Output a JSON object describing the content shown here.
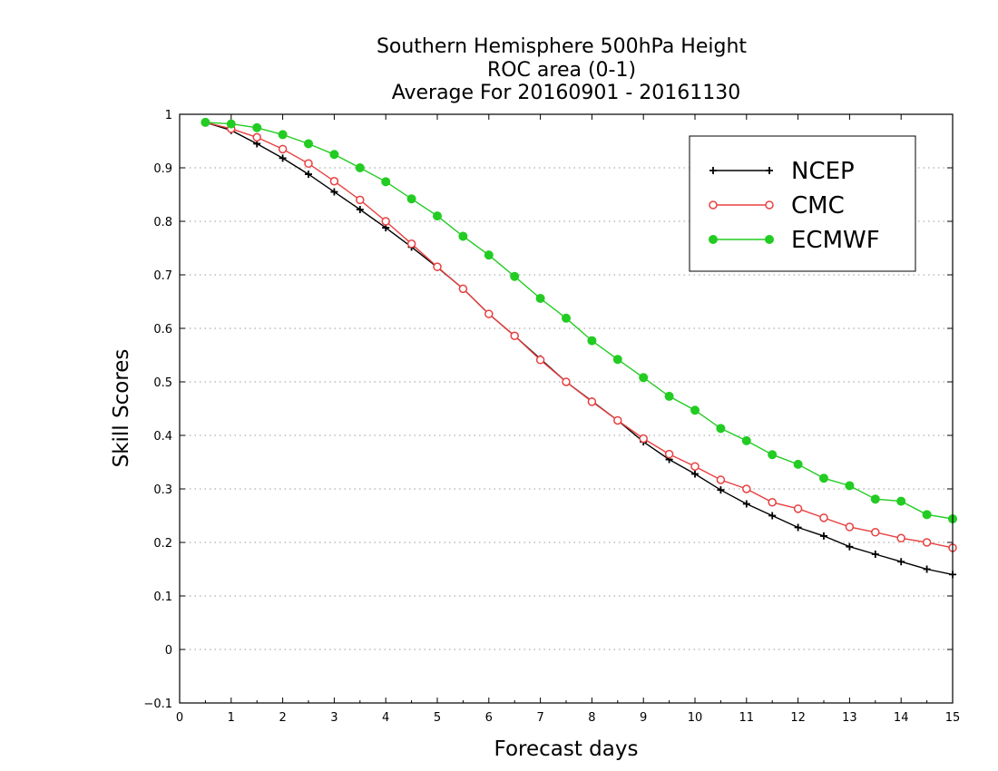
{
  "chart_data": {
    "type": "line",
    "title": [
      "Southern Hemisphere 500hPa Height",
      "ROC area (0-1)",
      "Average For 20160901 - 20161130"
    ],
    "xlabel": "Forecast days",
    "ylabel": "Skill Scores",
    "xlim": [
      0,
      15
    ],
    "ylim": [
      -0.1,
      1
    ],
    "x_ticks": [
      "0",
      "1",
      "2",
      "3",
      "4",
      "5",
      "6",
      "7",
      "8",
      "9",
      "10",
      "11",
      "12",
      "13",
      "14",
      "15"
    ],
    "y_ticks": [
      "−0.1",
      "0",
      "0.1",
      "0.2",
      "0.3",
      "0.4",
      "0.5",
      "0.6",
      "0.7",
      "0.8",
      "0.9",
      "1"
    ],
    "grid": "horizontal dotted",
    "legend_position": "top-right",
    "x": [
      0.5,
      1,
      1.5,
      2,
      2.5,
      3,
      3.5,
      4,
      4.5,
      5,
      5.5,
      6,
      6.5,
      7,
      7.5,
      8,
      8.5,
      9,
      9.5,
      10,
      10.5,
      11,
      11.5,
      12,
      12.5,
      13,
      13.5,
      14,
      14.5,
      15
    ],
    "series": [
      {
        "name": "NCEP",
        "color": "#000000",
        "marker": "plus",
        "values": [
          0.985,
          0.97,
          0.945,
          0.918,
          0.888,
          0.855,
          0.822,
          0.788,
          0.752,
          0.714,
          0.674,
          0.627,
          0.586,
          0.543,
          0.5,
          0.464,
          0.428,
          0.388,
          0.355,
          0.328,
          0.298,
          0.272,
          0.25,
          0.228,
          0.212,
          0.192,
          0.178,
          0.164,
          0.15,
          0.14
        ]
      },
      {
        "name": "CMC",
        "color": "#e84040",
        "marker": "open-circle",
        "values": [
          0.985,
          0.973,
          0.957,
          0.935,
          0.908,
          0.875,
          0.84,
          0.8,
          0.758,
          0.715,
          0.674,
          0.627,
          0.586,
          0.541,
          0.5,
          0.463,
          0.428,
          0.394,
          0.365,
          0.342,
          0.317,
          0.3,
          0.275,
          0.263,
          0.246,
          0.229,
          0.219,
          0.208,
          0.2,
          0.19
        ]
      },
      {
        "name": "ECMWF",
        "color": "#22cc22",
        "marker": "filled-circle",
        "values": [
          0.985,
          0.982,
          0.975,
          0.962,
          0.945,
          0.925,
          0.9,
          0.874,
          0.842,
          0.81,
          0.772,
          0.737,
          0.697,
          0.656,
          0.619,
          0.577,
          0.542,
          0.508,
          0.473,
          0.447,
          0.413,
          0.39,
          0.364,
          0.346,
          0.32,
          0.306,
          0.281,
          0.277,
          0.252,
          0.244
        ]
      }
    ]
  }
}
